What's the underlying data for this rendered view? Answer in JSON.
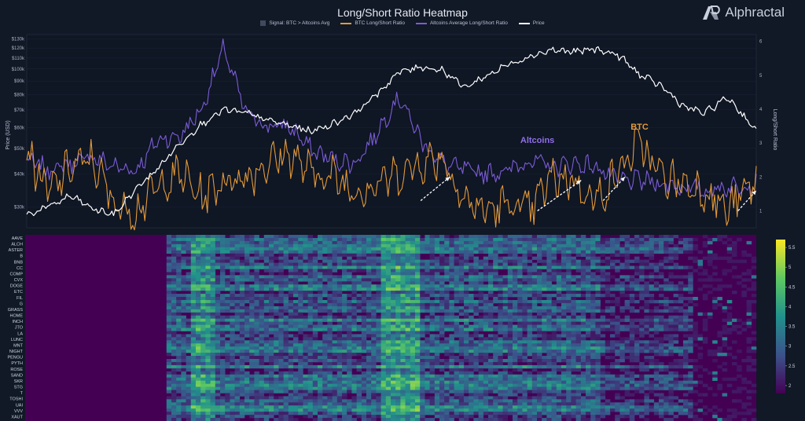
{
  "brand": {
    "logo_icon": "alphractal-logo-icon",
    "name": "Alphractal"
  },
  "chart_data": [
    {
      "type": "line",
      "title": "Long/Short Ratio Heatmap",
      "legend": [
        "Signal: BTC > Altcoins Avg",
        "BTC Long/Short Ratio",
        "Altcoins Average Long/Short Ratio",
        "Price"
      ],
      "legend_placement": "top-center",
      "ylabel_left": "Price (USD)",
      "ylabel_right": "Long/Short Ratio",
      "y_left_scale": "log",
      "y_left_ticks": [
        "$130k",
        "$120k",
        "$110k",
        "$100k",
        "$90k",
        "$80k",
        "$70k",
        "$60k",
        "$50k",
        "$40k",
        "$30k"
      ],
      "y_left_values": [
        130000,
        120000,
        110000,
        100000,
        90000,
        80000,
        70000,
        60000,
        50000,
        40000,
        30000
      ],
      "y_right_ticks": [
        "6",
        "5",
        "4",
        "3",
        "2",
        "1"
      ],
      "y_right_values": [
        6,
        5,
        4,
        3,
        2,
        1
      ],
      "ylim_left": [
        25000,
        135000
      ],
      "ylim_right": [
        0.5,
        6.2
      ],
      "colors": {
        "signal": "#3f4a5e",
        "btc": "#e39a3a",
        "altcoins": "#7b5cd6",
        "price": "#ffffff"
      },
      "annotations": [
        {
          "text": "Altcoins",
          "color": "#8f6ee8",
          "x": 0.7,
          "y": 3.0
        },
        {
          "text": "BTC",
          "color": "#e39a3a",
          "x": 0.84,
          "y": 3.4
        }
      ],
      "series": [
        {
          "name": "Price",
          "x": [
            0,
            0.03,
            0.06,
            0.09,
            0.12,
            0.15,
            0.18,
            0.21,
            0.24,
            0.27,
            0.3,
            0.33,
            0.36,
            0.39,
            0.42,
            0.45,
            0.48,
            0.51,
            0.54,
            0.57,
            0.6,
            0.63,
            0.66,
            0.69,
            0.72,
            0.75,
            0.78,
            0.81,
            0.84,
            0.87,
            0.9,
            0.93,
            0.96,
            1.0
          ],
          "values": [
            28000,
            30000,
            33000,
            29500,
            28000,
            35000,
            42000,
            52000,
            62000,
            70000,
            68000,
            64000,
            61000,
            58000,
            62000,
            68000,
            80000,
            97000,
            102000,
            99000,
            85000,
            94000,
            104000,
            112000,
            118000,
            116000,
            119000,
            113000,
            95000,
            86000,
            72000,
            68000,
            78000,
            58000
          ]
        },
        {
          "name": "BTC Long/Short Ratio",
          "x": [
            0,
            0.03,
            0.06,
            0.09,
            0.12,
            0.15,
            0.18,
            0.21,
            0.24,
            0.27,
            0.3,
            0.33,
            0.36,
            0.39,
            0.42,
            0.45,
            0.48,
            0.51,
            0.54,
            0.57,
            0.6,
            0.63,
            0.66,
            0.69,
            0.72,
            0.75,
            0.78,
            0.81,
            0.84,
            0.87,
            0.9,
            0.93,
            0.96,
            1.0
          ],
          "values": [
            2.8,
            1.5,
            2.3,
            2.5,
            1.2,
            1.0,
            1.7,
            2.1,
            1.4,
            1.9,
            2.0,
            2.4,
            2.7,
            2.1,
            2.0,
            1.6,
            1.8,
            2.1,
            2.4,
            2.6,
            1.3,
            1.0,
            1.2,
            1.0,
            2.0,
            1.9,
            1.3,
            2.1,
            3.0,
            2.0,
            1.8,
            1.6,
            1.0,
            1.9
          ]
        },
        {
          "name": "Altcoins Average Long/Short Ratio",
          "x": [
            0,
            0.03,
            0.06,
            0.09,
            0.12,
            0.15,
            0.18,
            0.21,
            0.24,
            0.27,
            0.3,
            0.33,
            0.36,
            0.39,
            0.42,
            0.45,
            0.48,
            0.51,
            0.54,
            0.57,
            0.6,
            0.63,
            0.66,
            0.69,
            0.72,
            0.75,
            0.78,
            0.81,
            0.84,
            0.87,
            0.9,
            0.93,
            0.96,
            1.0
          ],
          "values": [
            2.5,
            2.2,
            2.4,
            2.6,
            2.3,
            2.2,
            3.1,
            3.2,
            4.0,
            5.8,
            3.9,
            3.5,
            3.5,
            2.8,
            2.5,
            2.4,
            3.3,
            4.4,
            3.1,
            2.4,
            2.2,
            2.1,
            2.2,
            2.5,
            2.3,
            2.4,
            2.3,
            1.9,
            1.9,
            1.8,
            1.7,
            1.6,
            1.7,
            1.8
          ]
        }
      ]
    },
    {
      "type": "heatmap",
      "colorbar_ticks": [
        "5.5",
        "5",
        "4.5",
        "4",
        "3.5",
        "3",
        "2.5",
        "2"
      ],
      "colorbar_values": [
        5.5,
        5.0,
        4.5,
        4.0,
        3.5,
        3.0,
        2.5,
        2.0
      ],
      "colorbar_range": [
        1.8,
        5.7
      ],
      "colormap": "viridis",
      "rows": [
        "AAVE",
        "ALCH",
        "ASTER",
        "B",
        "BNB",
        "CC",
        "COMP",
        "CVX",
        "DOGE",
        "ETC",
        "FIL",
        "G",
        "GRASS",
        "HOME",
        "INCH",
        "JTO",
        "LA",
        "LUNC",
        "MNT",
        "NIGHT",
        "PENGU",
        "PYTH",
        "ROSE",
        "SAND",
        "SKR",
        "STG",
        "T",
        "TOSHI",
        "UAI",
        "VVV",
        "XAUT"
      ],
      "description_levels": {
        "early_period_value": 1.8,
        "active_period_value_range": [
          2.0,
          5.5
        ]
      }
    }
  ]
}
